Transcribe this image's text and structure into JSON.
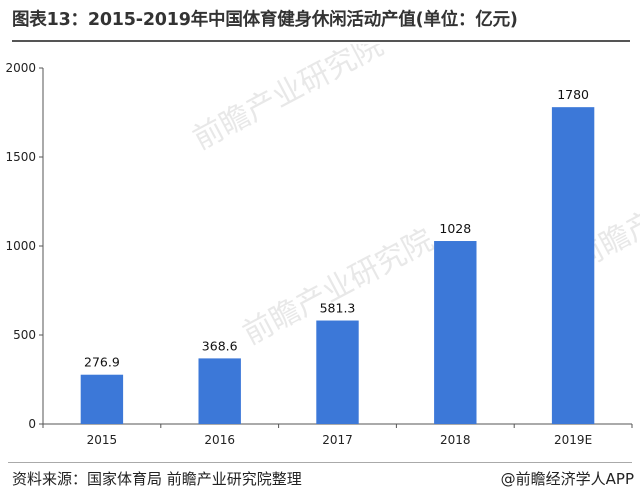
{
  "title": "图表13：2015-2019年中国体育健身休闲活动产值(单位：亿元)",
  "footer": {
    "source": "资料来源：国家体育局 前瞻产业研究院整理",
    "credit": "@前瞻经济学人APP"
  },
  "watermark": {
    "text": "前瞻产业研究院"
  },
  "colors": {
    "bar": "#3c78d8",
    "axis": "#555555",
    "text": "#222222"
  },
  "chart_data": {
    "type": "bar",
    "title": "图表13：2015-2019年中国体育健身休闲活动产值(单位：亿元)",
    "xlabel": "",
    "ylabel": "",
    "categories": [
      "2015",
      "2016",
      "2017",
      "2018",
      "2019E"
    ],
    "values": [
      276.9,
      368.6,
      581.3,
      1028,
      1780
    ],
    "value_labels": [
      "276.9",
      "368.6",
      "581.3",
      "1028",
      "1780"
    ],
    "ylim": [
      0,
      2000
    ],
    "yticks": [
      0,
      500,
      1000,
      1500,
      2000
    ],
    "ytick_labels": [
      "0",
      "500",
      "1000",
      "1500",
      "2000"
    ],
    "grid": false,
    "legend": "none"
  }
}
